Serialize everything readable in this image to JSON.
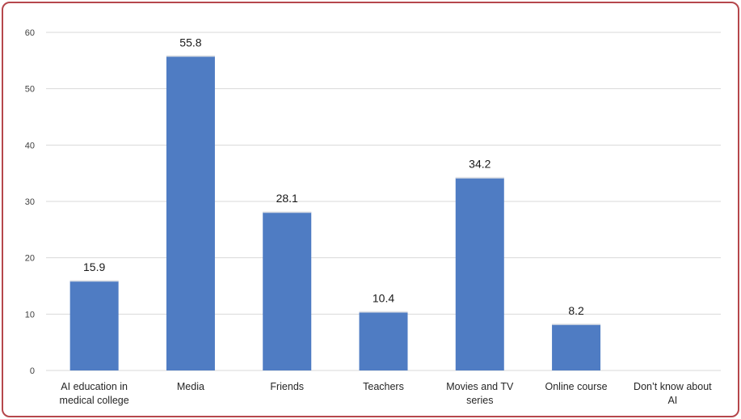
{
  "chart_data": {
    "type": "bar",
    "categories": [
      "AI education in medical college",
      "Media",
      "Friends",
      "Teachers",
      "Movies and TV series",
      "Online course",
      "Don’t know  about AI"
    ],
    "category_lines": [
      [
        "AI education in",
        "medical college"
      ],
      [
        "Media"
      ],
      [
        "Friends"
      ],
      [
        "Teachers"
      ],
      [
        "Movies and TV",
        "series"
      ],
      [
        "Online course"
      ],
      [
        "Don’t know  about",
        "AI"
      ]
    ],
    "values": [
      15.9,
      55.8,
      28.1,
      10.4,
      34.2,
      8.2,
      null
    ],
    "data_labels": [
      "15.9",
      "55.8",
      "28.1",
      "10.4",
      "34.2",
      "8.2",
      ""
    ],
    "title": "",
    "xlabel": "",
    "ylabel": "",
    "ylim": [
      0,
      60
    ],
    "yticks": [
      0,
      10,
      20,
      30,
      40,
      50,
      60
    ],
    "grid": true,
    "legend": "none",
    "bar_color": "#4f7cc3",
    "border_color": "#b5474c",
    "grid_color": "#d9d9d9"
  }
}
